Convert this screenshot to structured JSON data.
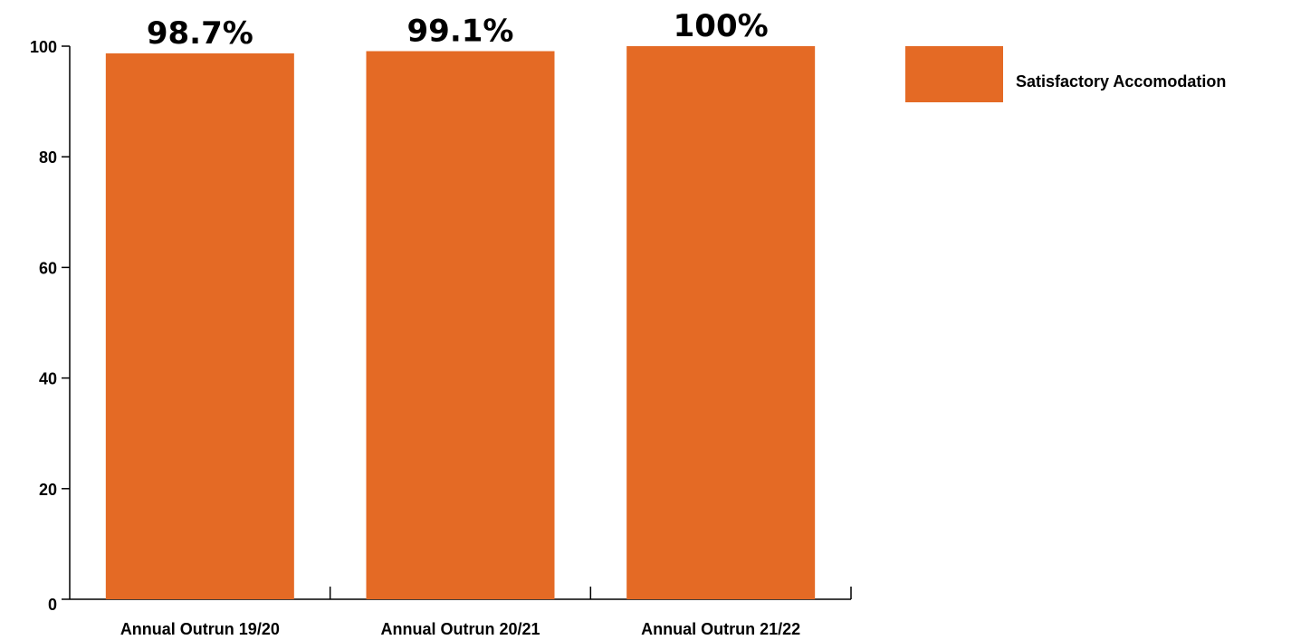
{
  "chart_data": {
    "type": "bar",
    "categories": [
      "Annual Outrun 19/20",
      "Annual Outrun 20/21",
      "Annual Outrun 21/22"
    ],
    "series": [
      {
        "name": "Satisfactory Accomodation",
        "values": [
          98.7,
          99.1,
          100
        ],
        "data_labels": [
          "98.7%",
          "99.1%",
          "100%"
        ],
        "color": "#E46A25"
      }
    ],
    "ylim": [
      0,
      100
    ],
    "yticks": [
      0,
      20,
      40,
      60,
      80,
      100
    ],
    "title": "",
    "xlabel": "",
    "ylabel": "",
    "grid": false,
    "legend": "top-right"
  }
}
